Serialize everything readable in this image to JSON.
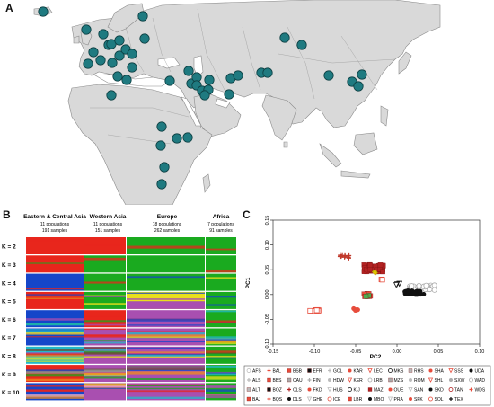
{
  "panels": {
    "a": "A",
    "b": "B",
    "c": "C"
  },
  "admixture": {
    "regions": [
      {
        "name": "Eastern & Central Asia",
        "populations": "11 populations",
        "samples": "191 samples"
      },
      {
        "name": "Western Asia",
        "populations": "11 populations",
        "samples": "151 samples"
      },
      {
        "name": "Europe",
        "populations": "18 populations",
        "samples": "262 samples"
      },
      {
        "name": "Africa",
        "populations": "7 populations",
        "samples": "91 samples"
      }
    ],
    "k_labels": [
      "K = 2",
      "K = 3",
      "K = 4",
      "K = 5",
      "K = 6",
      "K = 7",
      "K = 8",
      "K = 9",
      "K = 10"
    ]
  },
  "chart_data": {
    "type": "scatter",
    "xlabel": "PC2",
    "ylabel": "PC1",
    "xlim": [
      -0.15,
      0.1
    ],
    "ylim": [
      -0.1,
      0.15
    ],
    "xticks": [
      "-0.15",
      "-0.10",
      "-0.05",
      "0.00",
      "0.05",
      "0.10"
    ],
    "yticks": [
      "-0.10",
      "-0.05",
      "0.00",
      "0.05",
      "0.10",
      "0.15"
    ],
    "grid": false,
    "clusters": [
      {
        "group": "Western Asia",
        "color": "#c0392b",
        "center": [
          -0.062,
          0.077
        ],
        "spread": [
          0.007,
          0.004
        ],
        "n": 12,
        "shape": "plus"
      },
      {
        "group": "Europe",
        "color": "#b22222",
        "center": [
          -0.028,
          0.053
        ],
        "spread": [
          0.012,
          0.007
        ],
        "n": 45,
        "shape": "square"
      },
      {
        "group": "Europe",
        "color": "#e6c800",
        "center": [
          -0.027,
          0.045
        ],
        "spread": [
          0.002,
          0.002
        ],
        "n": 4,
        "shape": "diamond"
      },
      {
        "group": "Eastern & Central Asia",
        "color": "#aaaaaa",
        "center": [
          0.03,
          0.014
        ],
        "spread": [
          0.016,
          0.005
        ],
        "n": 40,
        "shape": "circle-open"
      },
      {
        "group": "Eastern & Central Asia",
        "color": "#111111",
        "center": [
          0.02,
          0.004
        ],
        "spread": [
          0.013,
          0.004
        ],
        "n": 30,
        "shape": "circle"
      },
      {
        "group": "Eastern & Central Asia",
        "color": "#111111",
        "center": [
          0.002,
          0.02
        ],
        "spread": [
          0.003,
          0.002
        ],
        "n": 4,
        "shape": "triangle-down-open"
      },
      {
        "group": "Africa",
        "color": "#e74c3c",
        "center": [
          -0.1,
          -0.032
        ],
        "spread": [
          0.007,
          0.002
        ],
        "n": 12,
        "shape": "square-open"
      },
      {
        "group": "Africa",
        "color": "#e74c3c",
        "center": [
          -0.05,
          -0.03
        ],
        "spread": [
          0.003,
          0.003
        ],
        "n": 6,
        "shape": "circle"
      },
      {
        "group": "Africa",
        "color": "#e74c3c",
        "center": [
          -0.036,
          -0.001
        ],
        "spread": [
          0.004,
          0.003
        ],
        "n": 6,
        "shape": "square"
      },
      {
        "group": "Africa",
        "color": "#4caf50",
        "center": [
          -0.036,
          -0.003
        ],
        "spread": [
          0.002,
          0.002
        ],
        "n": 3,
        "shape": "square"
      },
      {
        "group": "Africa",
        "color": "#e74c3c",
        "center": [
          -0.018,
          0.03
        ],
        "spread": [
          0.002,
          0.002
        ],
        "n": 2,
        "shape": "square-open"
      }
    ]
  },
  "legend": [
    [
      "AFS",
      "BAL",
      "BSB",
      "EFR",
      "GOL",
      "KAR",
      "LEC",
      "MKS",
      "RHS",
      "SHA",
      "SSS",
      "UDA"
    ],
    [
      "ALS",
      "BBS",
      "CAU",
      "FIN",
      "HDW",
      "KER",
      "LRB",
      "MZS",
      "ROM",
      "SHL",
      "SXW",
      "WAD"
    ],
    [
      "ALT",
      "BOZ",
      "CLS",
      "FKD",
      "HUS",
      "KIJ",
      "MAZ",
      "OUE",
      "SAN",
      "SKD",
      "TAN",
      "WDS"
    ],
    [
      "BAJ",
      "BQS",
      "DLS",
      "GHE",
      "ICE",
      "LBR",
      "MBO",
      "PRA",
      "SFK",
      "SOL",
      "TEX"
    ]
  ],
  "map_sites": [
    [
      28,
      13
    ],
    [
      76,
      33
    ],
    [
      95,
      38
    ],
    [
      101,
      50
    ],
    [
      104,
      49
    ],
    [
      113,
      45
    ],
    [
      113,
      62
    ],
    [
      120,
      55
    ],
    [
      127,
      60
    ],
    [
      127,
      75
    ],
    [
      121,
      89
    ],
    [
      84,
      58
    ],
    [
      78,
      71
    ],
    [
      92,
      67
    ],
    [
      105,
      70
    ],
    [
      111,
      85
    ],
    [
      141,
      43
    ],
    [
      139,
      18
    ],
    [
      104,
      106
    ],
    [
      169,
      90
    ],
    [
      190,
      79
    ],
    [
      193,
      93
    ],
    [
      199,
      86
    ],
    [
      199,
      95
    ],
    [
      205,
      101
    ],
    [
      212,
      100
    ],
    [
      208,
      106
    ],
    [
      213,
      89
    ],
    [
      235,
      105
    ],
    [
      237,
      87
    ],
    [
      245,
      84
    ],
    [
      271,
      81
    ],
    [
      278,
      81
    ],
    [
      297,
      42
    ],
    [
      316,
      50
    ],
    [
      346,
      84
    ],
    [
      372,
      91
    ],
    [
      379,
      96
    ],
    [
      383,
      83
    ],
    [
      160,
      141
    ],
    [
      159,
      162
    ],
    [
      189,
      153
    ],
    [
      177,
      154
    ],
    [
      163,
      186
    ],
    [
      160,
      205
    ]
  ]
}
